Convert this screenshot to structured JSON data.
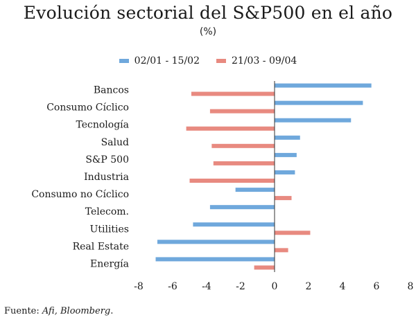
{
  "header": {
    "title": "Evolución sectorial del S&P500 en el año",
    "subtitle": "(%)"
  },
  "source": {
    "prefix": "Fuente: ",
    "italic_text": "Afi, Bloomberg",
    "suffix": "."
  },
  "colors": {
    "series1": "#6fa8dc",
    "series2": "#e88a80",
    "axis": "#333333"
  },
  "chart_data": {
    "type": "bar",
    "orientation": "horizontal",
    "title": "Evolución sectorial del S&P500 en el año",
    "subtitle": "(%)",
    "categories": [
      "Bancos",
      "Consumo Cíclico",
      "Tecnología",
      "Salud",
      "S&P 500",
      "Industria",
      "Consumo no Cíclico",
      "Telecom.",
      "Utilities",
      "Real Estate",
      "Energía"
    ],
    "series": [
      {
        "name": "02/01 - 15/02",
        "values": [
          5.7,
          5.2,
          4.5,
          1.5,
          1.3,
          1.2,
          -2.3,
          -3.8,
          -4.8,
          -6.9,
          -7.0
        ]
      },
      {
        "name": "21/03 - 09/04",
        "values": [
          -4.9,
          -3.8,
          -5.2,
          -3.7,
          -3.6,
          -5.0,
          1.0,
          0.0,
          2.1,
          0.8,
          -1.2
        ]
      }
    ],
    "xlim": [
      -8,
      8
    ],
    "xticks": [
      -8,
      -6,
      -4,
      -2,
      0,
      2,
      4,
      6,
      8
    ],
    "legend_position": "top-center",
    "grid": false
  }
}
